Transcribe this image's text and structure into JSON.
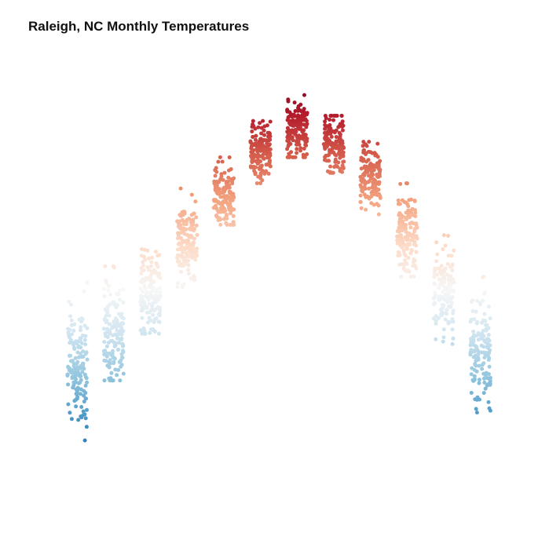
{
  "chart_data": {
    "type": "scatter",
    "title": "Raleigh, NC Monthly Temperatures",
    "xlabel": "",
    "ylabel": "",
    "x_axis_visible": false,
    "y_axis_visible": false,
    "grid": false,
    "legend": "none",
    "color_encoding": "temperature, diverging blue-white-red",
    "colormap": [
      "#053061",
      "#2166ac",
      "#4393c3",
      "#92c5de",
      "#d1e5f0",
      "#f7f7f7",
      "#fddbc7",
      "#f4a582",
      "#d6604d",
      "#b2182b",
      "#67001f"
    ],
    "series": [
      {
        "month": 1,
        "points_per_month": 150,
        "center": 43,
        "spread": 6,
        "min": 18,
        "max": 63
      },
      {
        "month": 2,
        "points_per_month": 150,
        "center": 49,
        "spread": 5,
        "min": 40,
        "max": 62
      },
      {
        "month": 3,
        "points_per_month": 150,
        "center": 57,
        "spread": 4,
        "min": 49,
        "max": 70
      },
      {
        "month": 4,
        "points_per_month": 150,
        "center": 66,
        "spread": 4,
        "min": 58,
        "max": 77
      },
      {
        "month": 5,
        "points_per_month": 150,
        "center": 75,
        "spread": 3,
        "min": 70,
        "max": 83
      },
      {
        "month": 6,
        "points_per_month": 150,
        "center": 84,
        "spread": 3,
        "min": 78,
        "max": 90
      },
      {
        "month": 7,
        "points_per_month": 150,
        "center": 88,
        "spread": 3,
        "min": 83,
        "max": 95
      },
      {
        "month": 8,
        "points_per_month": 150,
        "center": 86,
        "spread": 3,
        "min": 80,
        "max": 91
      },
      {
        "month": 9,
        "points_per_month": 150,
        "center": 79,
        "spread": 3,
        "min": 72,
        "max": 86
      },
      {
        "month": 10,
        "points_per_month": 150,
        "center": 68,
        "spread": 4,
        "min": 60,
        "max": 78
      },
      {
        "month": 11,
        "points_per_month": 150,
        "center": 57,
        "spread": 4,
        "min": 47,
        "max": 68
      },
      {
        "month": 12,
        "points_per_month": 150,
        "center": 47,
        "spread": 5,
        "min": 20,
        "max": 60
      }
    ],
    "ylim": [
      15,
      100
    ],
    "xlim": [
      0.5,
      12.5
    ]
  }
}
